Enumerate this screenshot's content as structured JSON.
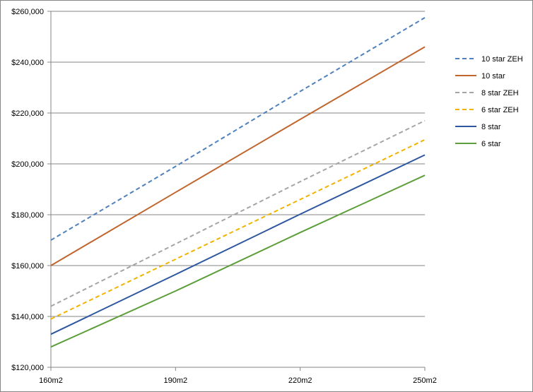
{
  "chart_data": {
    "type": "line",
    "title": "",
    "xlabel": "",
    "ylabel": "",
    "categories": [
      "160m2",
      "190m2",
      "220m2",
      "250m2"
    ],
    "y_tick_labels": [
      "$120,000",
      "$140,000",
      "$160,000",
      "$180,000",
      "$200,000",
      "$220,000",
      "$240,000",
      "$260,000"
    ],
    "ylim": [
      120000,
      260000
    ],
    "grid": true,
    "legend_position": "right",
    "series": [
      {
        "name": "10 star ZEH",
        "color": "#4F81BD",
        "dashed": true,
        "values": [
          170000,
          199000,
          228500,
          257500
        ]
      },
      {
        "name": "10 star",
        "color": "#C0662E",
        "dashed": false,
        "values": [
          160000,
          188800,
          217500,
          246000
        ]
      },
      {
        "name": "8 star ZEH",
        "color": "#A5A5A5",
        "dashed": true,
        "values": [
          144000,
          168500,
          193000,
          217000
        ]
      },
      {
        "name": "6 star ZEH",
        "color": "#F0B400",
        "dashed": true,
        "values": [
          139000,
          162500,
          186000,
          209500
        ]
      },
      {
        "name": "8 star",
        "color": "#2E57A0",
        "dashed": false,
        "values": [
          133000,
          156500,
          180200,
          203500
        ]
      },
      {
        "name": "6 star",
        "color": "#5C9E3A",
        "dashed": false,
        "values": [
          128000,
          150000,
          173000,
          195500
        ]
      }
    ]
  }
}
